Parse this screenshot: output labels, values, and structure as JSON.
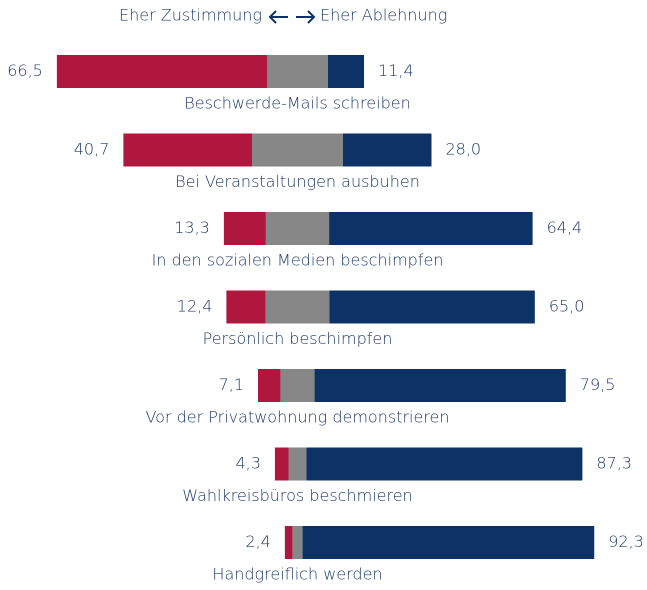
{
  "chart_data": {
    "type": "diverging_bar",
    "categories": [
      "Beschwerde-Mails schreiben",
      "Bei Veranstaltungen ausbuhen",
      "In den sozialen Medien beschimpfen",
      "Persönlich beschimpfen",
      "Vor der Privatwohnung demonstrieren",
      "Wahlkreisbüros beschmieren",
      "Handgreiflich werden"
    ],
    "series": [
      {
        "name": "Eher Zustimmung",
        "color": "#b0173f",
        "values": [
          66.5,
          40.7,
          13.3,
          12.4,
          7.1,
          4.3,
          2.4
        ],
        "value_labels": [
          "66,5",
          "40,7",
          "13,3",
          "12,4",
          "7,1",
          "4,3",
          "2,4"
        ]
      },
      {
        "color": "#878787",
        "values": [
          19.3,
          28.8,
          20.0,
          20.2,
          10.8,
          5.7,
          3.2
        ]
      },
      {
        "name": "Eher Ablehnung",
        "color": "#0d3366",
        "values": [
          11.4,
          28.0,
          64.4,
          65.0,
          79.5,
          87.3,
          92.3
        ],
        "value_labels": [
          "11,4",
          "28,0",
          "64,4",
          "65,0",
          "79,5",
          "87,3",
          "92,3"
        ]
      }
    ]
  }
}
